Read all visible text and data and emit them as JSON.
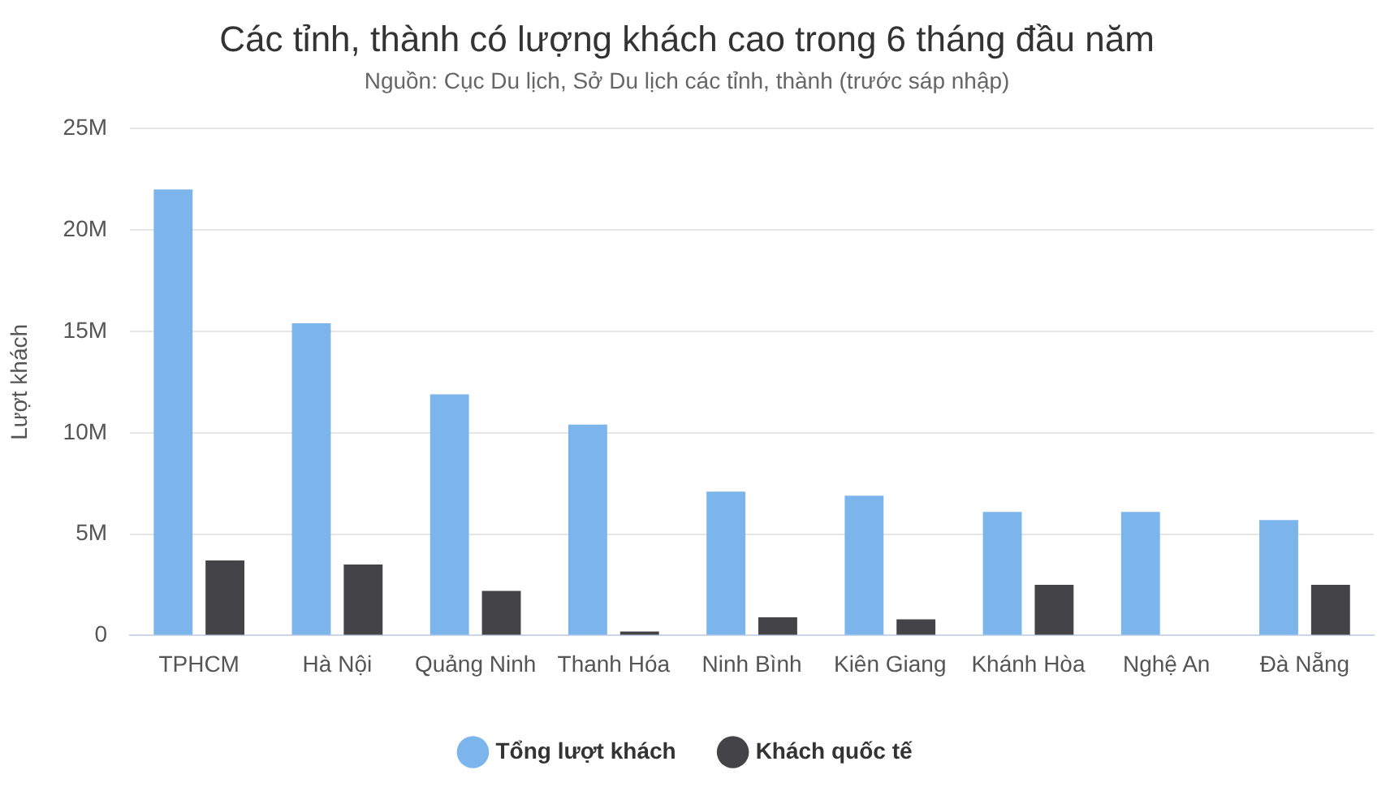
{
  "chart_data": {
    "type": "bar",
    "title": "Các tỉnh, thành có lượng khách cao trong 6 tháng đầu năm",
    "subtitle": "Nguồn: Cục Du lịch, Sở Du lịch các tỉnh, thành (trước sáp nhập)",
    "ylabel": "Lượt khách",
    "categories": [
      "TPHCM",
      "Hà Nội",
      "Quảng Ninh",
      "Thanh Hóa",
      "Ninh Bình",
      "Kiên Giang",
      "Khánh Hòa",
      "Nghệ An",
      "Đà Nẵng"
    ],
    "series": [
      {
        "name": "Tổng lượt khách",
        "color": "#7cb5ec",
        "values": [
          22000000,
          15400000,
          11900000,
          10400000,
          7100000,
          6900000,
          6100000,
          6100000,
          5700000
        ]
      },
      {
        "name": "Khách quốc tế",
        "color": "#434348",
        "values": [
          3700000,
          3500000,
          2200000,
          200000,
          900000,
          800000,
          2500000,
          null,
          2500000
        ]
      }
    ],
    "ylim": [
      0,
      25000000
    ],
    "yticks": [
      {
        "value": 0,
        "label": "0"
      },
      {
        "value": 5000000,
        "label": "5M"
      },
      {
        "value": 10000000,
        "label": "10M"
      },
      {
        "value": 15000000,
        "label": "15M"
      },
      {
        "value": 20000000,
        "label": "20M"
      },
      {
        "value": 25000000,
        "label": "25M"
      }
    ],
    "grid": "y",
    "legend": "bottom"
  }
}
